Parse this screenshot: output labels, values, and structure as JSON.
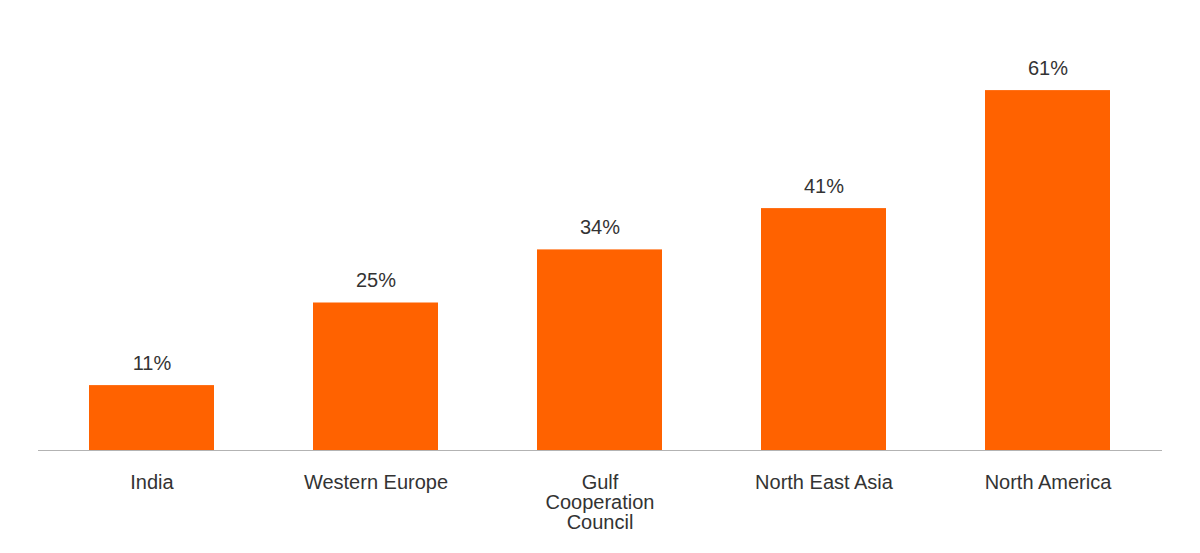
{
  "chart_data": {
    "type": "bar",
    "categories": [
      "India",
      "Western Europe",
      "Gulf Cooperation Council",
      "North East Asia",
      "North America"
    ],
    "values": [
      11,
      25,
      34,
      41,
      61
    ],
    "value_labels": [
      "11%",
      "25%",
      "34%",
      "41%",
      "61%"
    ],
    "color": "#ff6200",
    "ylim": [
      0,
      70
    ],
    "yticks": [],
    "grid": false,
    "data_labels": true,
    "tick_labels": "x"
  }
}
